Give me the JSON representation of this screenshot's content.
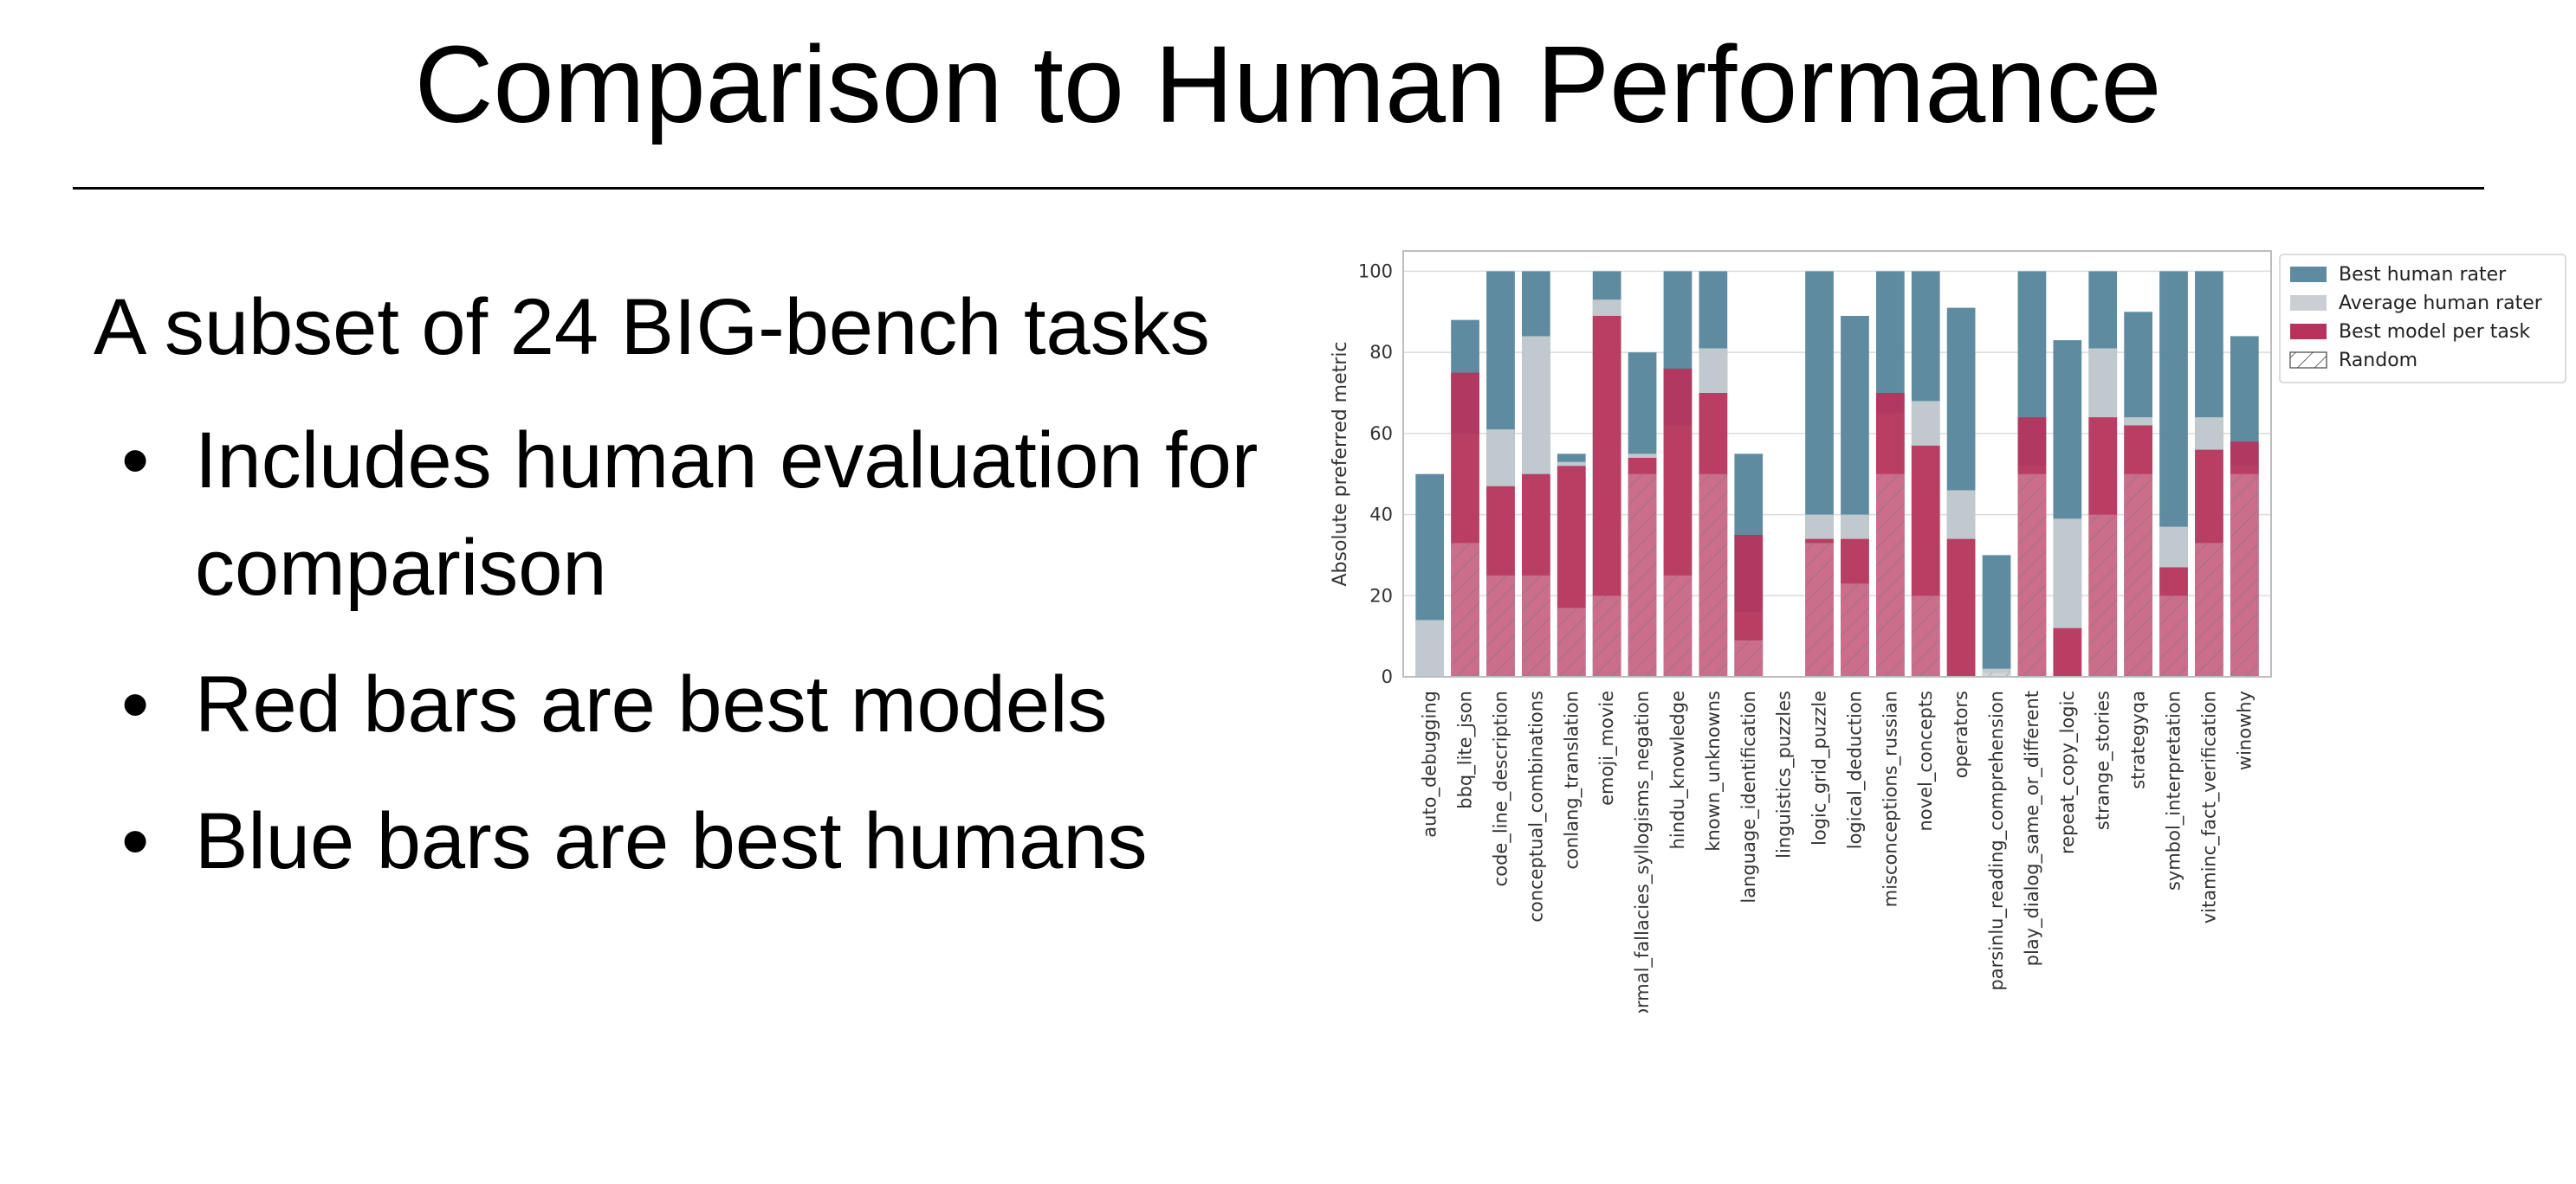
{
  "slide": {
    "title": "Comparison to Human Performance",
    "intro": "A subset of 24 BIG-bench tasks",
    "bullets": [
      "Includes human evaluation for comparison",
      "Red bars are best models",
      "Blue bars are best humans"
    ]
  },
  "chart_data": {
    "type": "bar",
    "title": "",
    "xlabel": "",
    "ylabel": "Absolute preferred metric",
    "ylim": [
      0,
      105
    ],
    "yticks": [
      0,
      20,
      40,
      60,
      80,
      100
    ],
    "grid": true,
    "legend_position": "top-right",
    "colors": {
      "best_human": "#5f8ba0",
      "average_human": "#cbcfd3",
      "best_model": "#b8325b",
      "random_hatch": "#444444"
    },
    "categories": [
      "auto_debugging",
      "bbq_lite_json",
      "code_line_description",
      "conceptual_combinations",
      "conlang_translation",
      "emoji_movie",
      "formal_fallacies_syllogisms_negation",
      "hindu_knowledge",
      "known_unknowns",
      "language_identification",
      "linguistics_puzzles",
      "logic_grid_puzzle",
      "logical_deduction",
      "misconceptions_russian",
      "novel_concepts",
      "operators",
      "parsinlu_reading_comprehension",
      "play_dialog_same_or_different",
      "repeat_copy_logic",
      "strange_stories",
      "strategyqa",
      "symbol_interpretation",
      "vitaminc_fact_verification",
      "winowhy"
    ],
    "series": [
      {
        "name": "Best human rater",
        "values": [
          50,
          88,
          100,
          100,
          55,
          100,
          80,
          100,
          100,
          55,
          0,
          100,
          89,
          100,
          100,
          91,
          30,
          100,
          83,
          100,
          90,
          100,
          100,
          84
        ]
      },
      {
        "name": "Average human rater",
        "values": [
          14,
          60,
          61,
          84,
          53,
          93,
          55,
          62,
          81,
          16,
          0,
          40,
          40,
          65,
          68,
          46,
          2,
          52,
          39,
          81,
          64,
          37,
          64,
          52
        ]
      },
      {
        "name": "Best model per task",
        "values": [
          0,
          75,
          47,
          50,
          52,
          89,
          54,
          76,
          70,
          35,
          0,
          34,
          34,
          70,
          57,
          34,
          0,
          64,
          12,
          64,
          62,
          27,
          56,
          58
        ]
      },
      {
        "name": "Random",
        "values": [
          0,
          33,
          25,
          25,
          17,
          20,
          50,
          25,
          50,
          9,
          0,
          33,
          23,
          50,
          20,
          0,
          1,
          50,
          0,
          40,
          50,
          20,
          33,
          50
        ]
      }
    ]
  }
}
